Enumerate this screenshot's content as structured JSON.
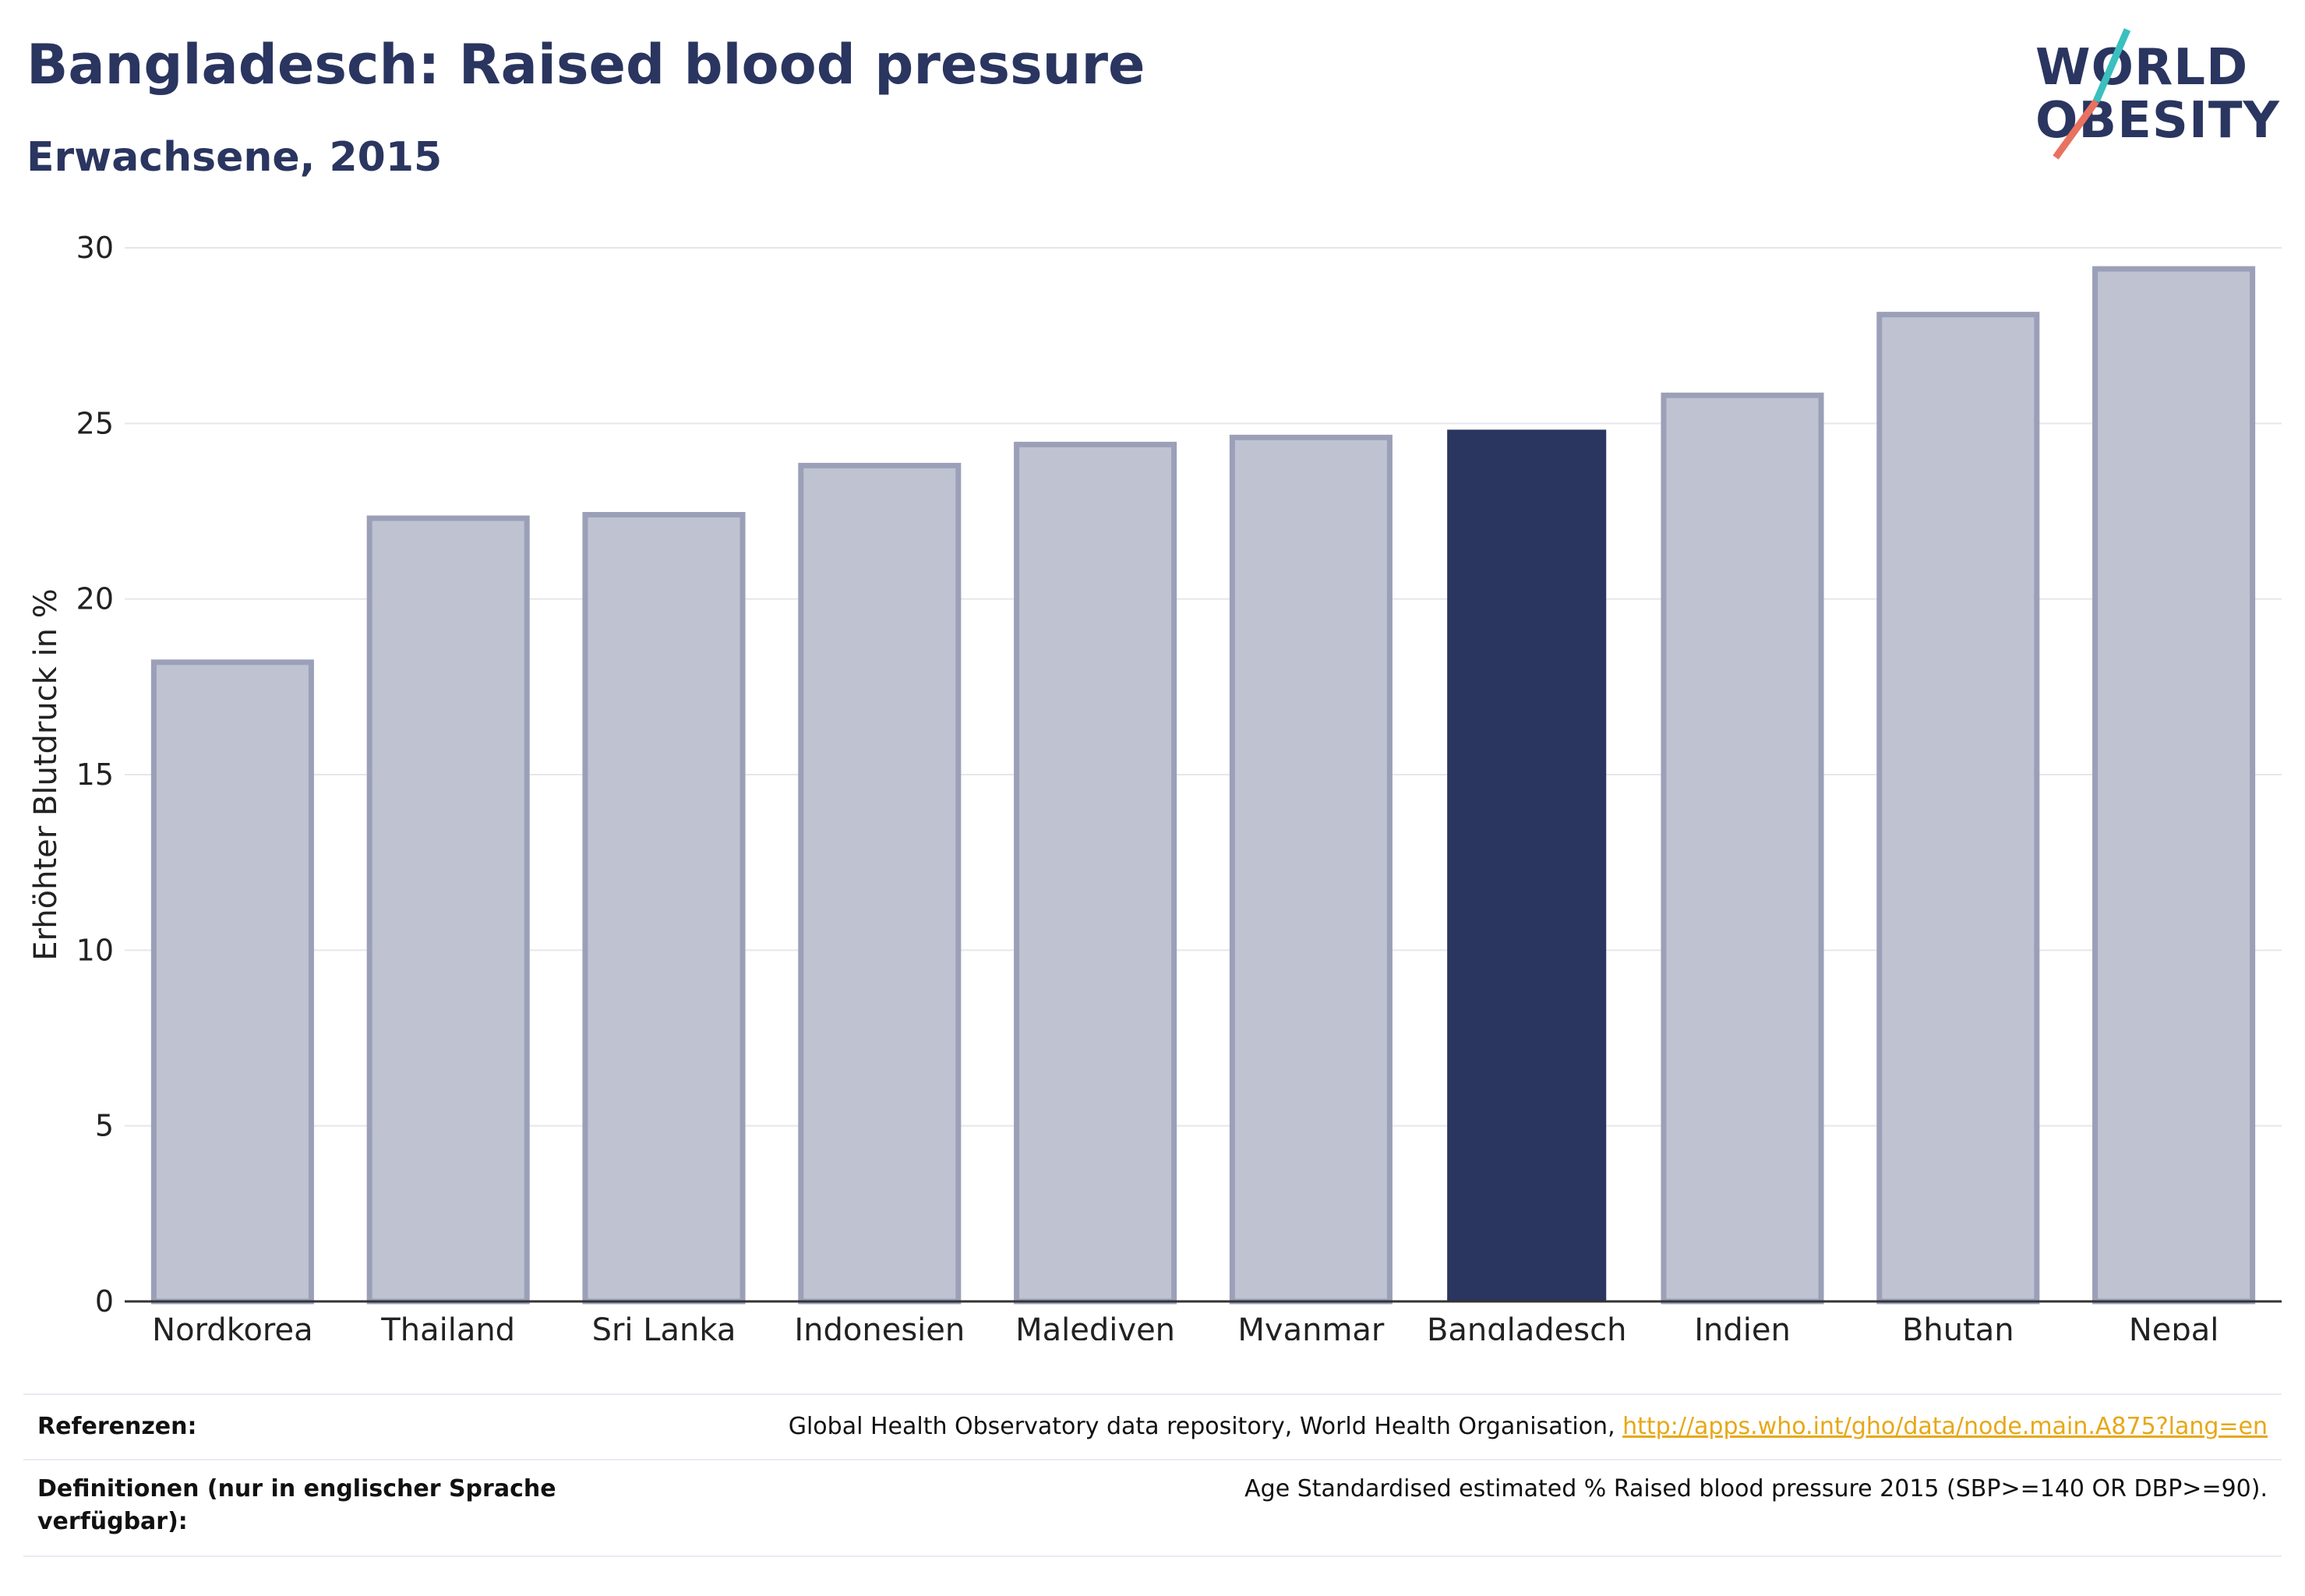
{
  "header": {
    "title": "Bangladesch: Raised blood pressure",
    "subtitle": "Erwachsene, 2015"
  },
  "logo": {
    "line1": "WORLD",
    "line2": "OBESITY",
    "slash_colors": [
      "#3bbfbf",
      "#e8725f"
    ]
  },
  "colors": {
    "highlight": "#2a3560",
    "other_fill": "#bfc2d0",
    "other_stroke": "#9ba0b8",
    "grid": "#e6e6ec",
    "link": "#e6a817"
  },
  "chart_data": {
    "type": "bar",
    "categories": [
      "Nordkorea",
      "Thailand",
      "Sri Lanka",
      "Indonesien",
      "Malediven",
      "Myanmar",
      "Bangladesch",
      "Indien",
      "Bhutan",
      "Nepal"
    ],
    "values": [
      18.2,
      22.3,
      22.4,
      23.8,
      24.4,
      24.6,
      24.8,
      25.8,
      28.1,
      29.4
    ],
    "highlight": "Bangladesch",
    "ylabel": "Erhöhter Blutdruck in %",
    "xlabel": "",
    "ylim": [
      0,
      30
    ],
    "yticks": [
      0,
      5,
      10,
      15,
      20,
      25,
      30
    ],
    "grid": true
  },
  "footer": {
    "ref_label": "Referenzen:",
    "ref_text": "Global Health Observatory data repository, World Health Organisation, ",
    "ref_link": "http://apps.who.int/gho/data/node.main.A875?lang=en",
    "def_label": "Definitionen (nur in englischer Sprache verfügbar):",
    "def_text": "Age Standardised estimated % Raised blood pressure 2015 (SBP>=140 OR DBP>=90)."
  }
}
